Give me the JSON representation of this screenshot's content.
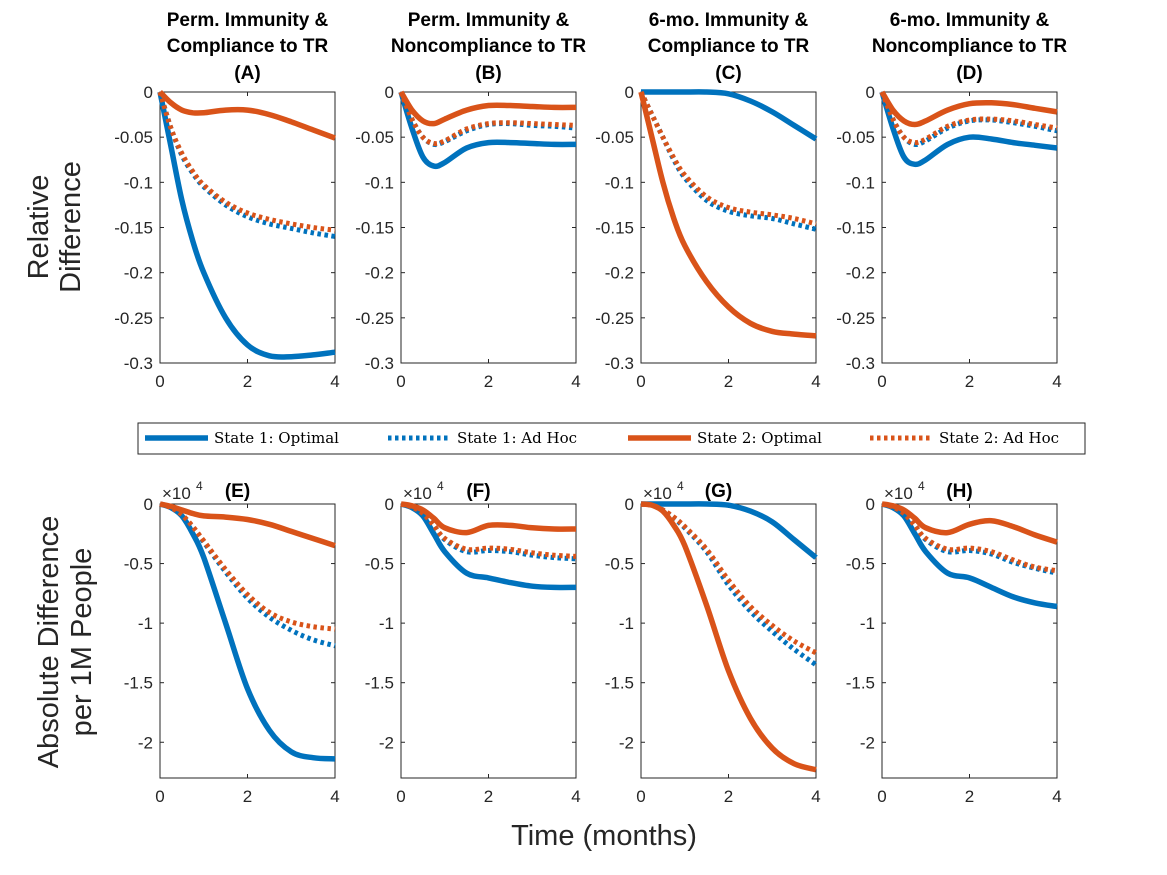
{
  "colors": {
    "state1": "#0072BD",
    "state2": "#D95319"
  },
  "shared": {
    "top_ylabel_line1": "Relative",
    "top_ylabel_line2": "Difference",
    "bottom_ylabel_line1": "Absolute Difference",
    "bottom_ylabel_line2": "per 1M People",
    "xlabel": "Time (months)",
    "exponent_base": "×10",
    "exponent_power": "4"
  },
  "legend": [
    {
      "label": "State 1: Optimal",
      "color": "#0072BD",
      "style": "solid"
    },
    {
      "label": "State 1: Ad Hoc",
      "color": "#0072BD",
      "style": "dotted"
    },
    {
      "label": "State 2: Optimal",
      "color": "#D95319",
      "style": "solid"
    },
    {
      "label": "State 2: Ad Hoc",
      "color": "#D95319",
      "style": "dotted"
    }
  ],
  "chart_data": [
    {
      "id": "A",
      "type": "line",
      "title": [
        "Perm. Immunity &",
        "Compliance to TR",
        "(A)"
      ],
      "xlim": [
        0,
        4
      ],
      "ylim": [
        -0.3,
        0
      ],
      "xticks": [
        "0",
        "2",
        "4"
      ],
      "yticks": [
        "0",
        "-0.05",
        "-0.1",
        "-0.15",
        "-0.2",
        "-0.25",
        "-0.3"
      ],
      "x": [
        0,
        0.25,
        0.5,
        0.75,
        1,
        1.5,
        2,
        2.5,
        3,
        3.5,
        4
      ],
      "series": [
        {
          "name": "State 1: Optimal",
          "values": [
            0,
            -0.06,
            -0.12,
            -0.165,
            -0.2,
            -0.25,
            -0.28,
            -0.292,
            -0.293,
            -0.291,
            -0.288
          ]
        },
        {
          "name": "State 1: Ad Hoc",
          "values": [
            0,
            -0.04,
            -0.07,
            -0.09,
            -0.105,
            -0.125,
            -0.138,
            -0.146,
            -0.151,
            -0.156,
            -0.16
          ]
        },
        {
          "name": "State 2: Optimal",
          "values": [
            0,
            -0.012,
            -0.02,
            -0.023,
            -0.023,
            -0.02,
            -0.02,
            -0.025,
            -0.033,
            -0.042,
            -0.051
          ]
        },
        {
          "name": "State 2: Ad Hoc",
          "values": [
            0,
            -0.04,
            -0.068,
            -0.088,
            -0.103,
            -0.122,
            -0.134,
            -0.141,
            -0.146,
            -0.15,
            -0.153
          ]
        }
      ]
    },
    {
      "id": "B",
      "type": "line",
      "title": [
        "Perm. Immunity &",
        "Noncompliance to TR",
        "(B)"
      ],
      "xlim": [
        0,
        4
      ],
      "ylim": [
        -0.3,
        0
      ],
      "xticks": [
        "0",
        "2",
        "4"
      ],
      "yticks": [
        "0",
        "-0.05",
        "-0.1",
        "-0.15",
        "-0.2",
        "-0.25",
        "-0.3"
      ],
      "x": [
        0,
        0.25,
        0.5,
        0.75,
        1,
        1.5,
        2,
        2.5,
        3,
        3.5,
        4
      ],
      "series": [
        {
          "name": "State 1: Optimal",
          "values": [
            0,
            -0.04,
            -0.072,
            -0.082,
            -0.078,
            -0.062,
            -0.056,
            -0.056,
            -0.057,
            -0.058,
            -0.058
          ]
        },
        {
          "name": "State 1: Ad Hoc",
          "values": [
            0,
            -0.03,
            -0.05,
            -0.058,
            -0.055,
            -0.043,
            -0.036,
            -0.035,
            -0.037,
            -0.038,
            -0.04
          ]
        },
        {
          "name": "State 2: Optimal",
          "values": [
            0,
            -0.02,
            -0.032,
            -0.035,
            -0.03,
            -0.02,
            -0.015,
            -0.015,
            -0.016,
            -0.017,
            -0.017
          ]
        },
        {
          "name": "State 2: Ad Hoc",
          "values": [
            0,
            -0.03,
            -0.05,
            -0.057,
            -0.054,
            -0.041,
            -0.035,
            -0.034,
            -0.035,
            -0.036,
            -0.037
          ]
        }
      ]
    },
    {
      "id": "C",
      "type": "line",
      "title": [
        "6-mo. Immunity &",
        "Compliance to TR",
        "(C)"
      ],
      "xlim": [
        0,
        4
      ],
      "ylim": [
        -0.3,
        0
      ],
      "xticks": [
        "0",
        "2",
        "4"
      ],
      "yticks": [
        "0",
        "-0.05",
        "-0.1",
        "-0.15",
        "-0.2",
        "-0.25",
        "-0.3"
      ],
      "x": [
        0,
        0.25,
        0.5,
        0.75,
        1,
        1.5,
        2,
        2.5,
        3,
        3.5,
        4
      ],
      "series": [
        {
          "name": "State 1: Optimal",
          "values": [
            0,
            0,
            0,
            0,
            0,
            0,
            -0.002,
            -0.01,
            -0.022,
            -0.037,
            -0.052
          ]
        },
        {
          "name": "State 1: Ad Hoc",
          "values": [
            0,
            -0.025,
            -0.05,
            -0.075,
            -0.095,
            -0.12,
            -0.132,
            -0.137,
            -0.14,
            -0.146,
            -0.152
          ]
        },
        {
          "name": "State 2: Optimal",
          "values": [
            0,
            -0.05,
            -0.1,
            -0.14,
            -0.17,
            -0.21,
            -0.238,
            -0.256,
            -0.265,
            -0.268,
            -0.27
          ]
        },
        {
          "name": "State 2: Ad Hoc",
          "values": [
            0,
            -0.025,
            -0.05,
            -0.073,
            -0.092,
            -0.116,
            -0.128,
            -0.133,
            -0.136,
            -0.14,
            -0.146
          ]
        }
      ]
    },
    {
      "id": "D",
      "type": "line",
      "title": [
        "6-mo. Immunity &",
        "Noncompliance to TR",
        "(D)"
      ],
      "xlim": [
        0,
        4
      ],
      "ylim": [
        -0.3,
        0
      ],
      "xticks": [
        "0",
        "2",
        "4"
      ],
      "yticks": [
        "0",
        "-0.05",
        "-0.1",
        "-0.15",
        "-0.2",
        "-0.25",
        "-0.3"
      ],
      "x": [
        0,
        0.25,
        0.5,
        0.75,
        1,
        1.5,
        2,
        2.5,
        3,
        3.5,
        4
      ],
      "series": [
        {
          "name": "State 1: Optimal",
          "values": [
            0,
            -0.04,
            -0.072,
            -0.08,
            -0.075,
            -0.058,
            -0.05,
            -0.052,
            -0.056,
            -0.059,
            -0.062
          ]
        },
        {
          "name": "State 1: Ad Hoc",
          "values": [
            0,
            -0.03,
            -0.05,
            -0.058,
            -0.054,
            -0.04,
            -0.032,
            -0.031,
            -0.034,
            -0.038,
            -0.043
          ]
        },
        {
          "name": "State 2: Optimal",
          "values": [
            0,
            -0.02,
            -0.032,
            -0.036,
            -0.032,
            -0.02,
            -0.013,
            -0.012,
            -0.014,
            -0.018,
            -0.022
          ]
        },
        {
          "name": "State 2: Ad Hoc",
          "values": [
            0,
            -0.03,
            -0.05,
            -0.056,
            -0.052,
            -0.038,
            -0.031,
            -0.03,
            -0.032,
            -0.036,
            -0.04
          ]
        }
      ]
    },
    {
      "id": "E",
      "type": "line",
      "title": [
        "(E)"
      ],
      "xlim": [
        0,
        4
      ],
      "ylim": [
        -23000,
        0
      ],
      "xticks": [
        "0",
        "2",
        "4"
      ],
      "yticks": [
        "0",
        "-0.5",
        "-1",
        "-1.5",
        "-2"
      ],
      "x": [
        0,
        0.25,
        0.5,
        0.75,
        1,
        1.5,
        2,
        2.5,
        3,
        3.5,
        4
      ],
      "series": [
        {
          "name": "State 1: Optimal",
          "values": [
            0,
            -300,
            -1000,
            -2500,
            -4500,
            -10000,
            -15500,
            -19000,
            -20800,
            -21300,
            -21400
          ]
        },
        {
          "name": "State 1: Ad Hoc",
          "values": [
            0,
            -300,
            -900,
            -2000,
            -3200,
            -5700,
            -7900,
            -9500,
            -10600,
            -11400,
            -11900
          ]
        },
        {
          "name": "State 2: Optimal",
          "values": [
            0,
            -200,
            -500,
            -800,
            -1000,
            -1100,
            -1300,
            -1700,
            -2300,
            -2900,
            -3500
          ]
        },
        {
          "name": "State 2: Ad Hoc",
          "values": [
            0,
            -300,
            -900,
            -1900,
            -3100,
            -5500,
            -7600,
            -9100,
            -9900,
            -10300,
            -10500
          ]
        }
      ]
    },
    {
      "id": "F",
      "type": "line",
      "title": [
        "(F)"
      ],
      "xlim": [
        0,
        4
      ],
      "ylim": [
        -23000,
        0
      ],
      "xticks": [
        "0",
        "2",
        "4"
      ],
      "yticks": [
        "0",
        "-0.5",
        "-1",
        "-1.5",
        "-2"
      ],
      "x": [
        0,
        0.25,
        0.5,
        0.75,
        1,
        1.5,
        2,
        2.5,
        3,
        3.5,
        4
      ],
      "series": [
        {
          "name": "State 1: Optimal",
          "values": [
            0,
            -300,
            -1000,
            -2500,
            -4000,
            -5800,
            -6200,
            -6600,
            -6900,
            -7000,
            -7000
          ]
        },
        {
          "name": "State 1: Ad Hoc",
          "values": [
            0,
            -250,
            -800,
            -1800,
            -3000,
            -4000,
            -3900,
            -4000,
            -4300,
            -4500,
            -4600
          ]
        },
        {
          "name": "State 2: Optimal",
          "values": [
            0,
            -150,
            -500,
            -1200,
            -2000,
            -2400,
            -1800,
            -1800,
            -2000,
            -2100,
            -2100
          ]
        },
        {
          "name": "State 2: Ad Hoc",
          "values": [
            0,
            -250,
            -800,
            -1800,
            -2900,
            -3800,
            -3700,
            -3800,
            -4100,
            -4300,
            -4400
          ]
        }
      ]
    },
    {
      "id": "G",
      "type": "line",
      "title": [
        "(G)"
      ],
      "xlim": [
        0,
        4
      ],
      "ylim": [
        -23000,
        0
      ],
      "xticks": [
        "0",
        "2",
        "4"
      ],
      "yticks": [
        "0",
        "-0.5",
        "-1",
        "-1.5",
        "-2"
      ],
      "x": [
        0,
        0.25,
        0.5,
        0.75,
        1,
        1.5,
        2,
        2.5,
        3,
        3.5,
        4
      ],
      "series": [
        {
          "name": "State 1: Optimal",
          "values": [
            0,
            0,
            0,
            0,
            0,
            0,
            -100,
            -600,
            -1500,
            -3000,
            -4500
          ]
        },
        {
          "name": "State 1: Ad Hoc",
          "values": [
            0,
            -100,
            -500,
            -1200,
            -2000,
            -4000,
            -6800,
            -9000,
            -10700,
            -12200,
            -13500
          ]
        },
        {
          "name": "State 2: Optimal",
          "values": [
            0,
            -100,
            -600,
            -1800,
            -3500,
            -8500,
            -14000,
            -18000,
            -20500,
            -21800,
            -22300
          ]
        },
        {
          "name": "State 2: Ad Hoc",
          "values": [
            0,
            -100,
            -500,
            -1100,
            -1900,
            -3800,
            -6400,
            -8600,
            -10200,
            -11500,
            -12500
          ]
        }
      ]
    },
    {
      "id": "H",
      "type": "line",
      "title": [
        "(H)"
      ],
      "xlim": [
        0,
        4
      ],
      "ylim": [
        -23000,
        0
      ],
      "xticks": [
        "0",
        "2",
        "4"
      ],
      "yticks": [
        "0",
        "-0.5",
        "-1",
        "-1.5",
        "-2"
      ],
      "x": [
        0,
        0.25,
        0.5,
        0.75,
        1,
        1.5,
        2,
        2.5,
        3,
        3.5,
        4
      ],
      "series": [
        {
          "name": "State 1: Optimal",
          "values": [
            0,
            -300,
            -1000,
            -2500,
            -4000,
            -5800,
            -6200,
            -7000,
            -7800,
            -8300,
            -8600
          ]
        },
        {
          "name": "State 1: Ad Hoc",
          "values": [
            0,
            -250,
            -800,
            -1800,
            -3000,
            -4000,
            -3900,
            -4200,
            -4900,
            -5400,
            -5800
          ]
        },
        {
          "name": "State 2: Optimal",
          "values": [
            0,
            -150,
            -500,
            -1200,
            -2000,
            -2400,
            -1700,
            -1400,
            -1900,
            -2600,
            -3200
          ]
        },
        {
          "name": "State 2: Ad Hoc",
          "values": [
            0,
            -250,
            -800,
            -1800,
            -2900,
            -3800,
            -3700,
            -4000,
            -4700,
            -5300,
            -5600
          ]
        }
      ]
    }
  ]
}
